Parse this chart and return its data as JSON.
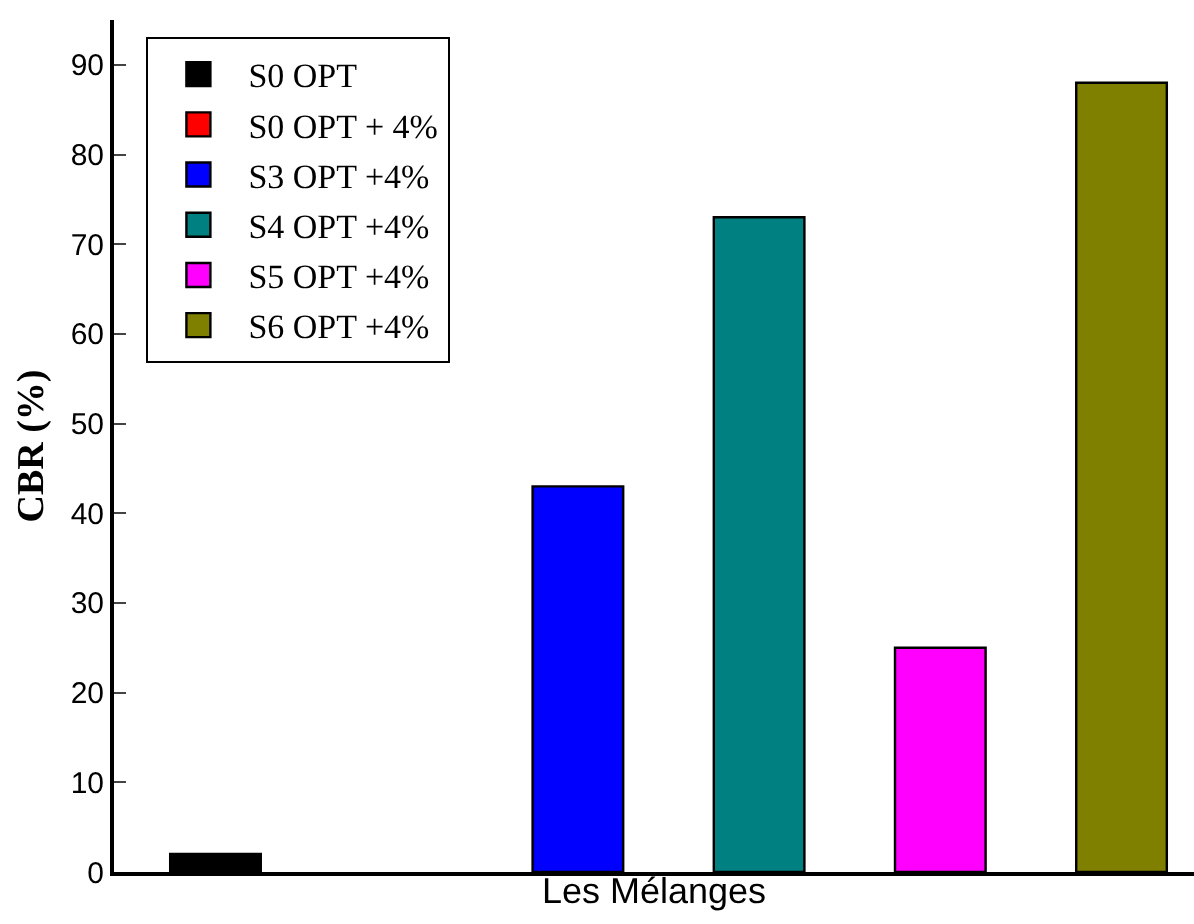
{
  "chart_data": {
    "type": "bar",
    "xlabel": "Les Mélanges",
    "ylabel": "CBR (%)",
    "categories": [
      null,
      null,
      null,
      null,
      null,
      null
    ],
    "series": [
      {
        "name": "S0 OPT",
        "color": "#000000",
        "values": [
          2,
          null,
          null,
          null,
          null,
          null
        ]
      },
      {
        "name": "S0 OPT + 4%",
        "color": "#ff0000",
        "values": [
          null,
          null,
          null,
          null,
          null,
          null
        ]
      },
      {
        "name": "S3 OPT +4%",
        "color": "#0000ff",
        "values": [
          null,
          null,
          43,
          null,
          null,
          null
        ]
      },
      {
        "name": "S4 OPT +4%",
        "color": "#008080",
        "values": [
          null,
          null,
          null,
          73,
          null,
          null
        ]
      },
      {
        "name": "S5 OPT +4%",
        "color": "#ff00ff",
        "values": [
          null,
          null,
          null,
          null,
          25,
          null
        ]
      },
      {
        "name": "S6 OPT +4%",
        "color": "#808000",
        "values": [
          null,
          null,
          null,
          null,
          null,
          88
        ]
      }
    ],
    "ylim": [
      0,
      95
    ],
    "yticks": [
      0,
      10,
      20,
      30,
      40,
      50,
      60,
      70,
      80,
      90
    ],
    "legend": "top left",
    "tick_labels": "y"
  }
}
